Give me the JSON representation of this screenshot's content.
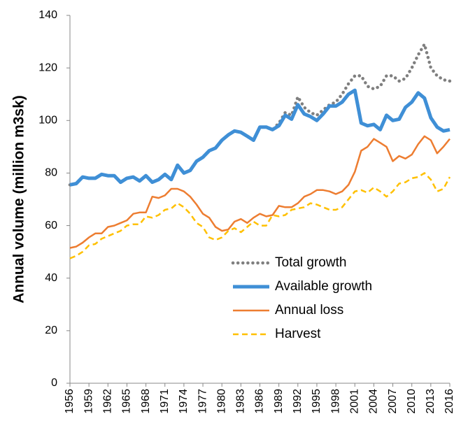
{
  "chart_data": {
    "type": "line",
    "y_label": "Annual volume (million m3sk)",
    "x": [
      1956,
      1957,
      1958,
      1959,
      1960,
      1961,
      1962,
      1963,
      1964,
      1965,
      1966,
      1967,
      1968,
      1969,
      1970,
      1971,
      1972,
      1973,
      1974,
      1975,
      1976,
      1977,
      1978,
      1979,
      1980,
      1981,
      1982,
      1983,
      1984,
      1985,
      1986,
      1987,
      1988,
      1989,
      1990,
      1991,
      1992,
      1993,
      1994,
      1995,
      1996,
      1997,
      1998,
      1999,
      2000,
      2001,
      2002,
      2003,
      2004,
      2005,
      2006,
      2007,
      2008,
      2009,
      2010,
      2011,
      2012,
      2013,
      2014,
      2015,
      2016
    ],
    "xlim": [
      1956,
      2016
    ],
    "xticks": [
      1956,
      1959,
      1962,
      1965,
      1968,
      1971,
      1974,
      1977,
      1980,
      1983,
      1986,
      1989,
      1992,
      1995,
      1998,
      2001,
      2004,
      2007,
      2010,
      2013,
      2016
    ],
    "ylim": [
      0,
      140
    ],
    "yticks": [
      0,
      20,
      40,
      60,
      80,
      100,
      120,
      140
    ],
    "grid": false,
    "legend": "lower right",
    "series": [
      {
        "name": "Total  growth",
        "color": "#7f7f7f",
        "style": "dotted",
        "values": [
          75.5,
          76,
          78.5,
          78,
          78,
          79.5,
          79,
          79,
          76.5,
          78,
          78.5,
          77,
          79,
          76.5,
          77.5,
          79.5,
          77.5,
          83,
          80,
          81,
          84.5,
          86,
          88.5,
          89.5,
          92.5,
          94.5,
          96,
          95.5,
          94,
          92.5,
          97.5,
          97.5,
          96.5,
          99,
          103,
          102,
          109,
          105,
          103,
          102,
          104,
          106,
          107,
          110,
          114,
          117,
          117,
          113,
          112,
          113,
          117,
          117,
          115,
          116,
          120,
          125,
          129,
          120,
          117,
          115.5,
          115
        ]
      },
      {
        "name": "Available  growth",
        "color": "#3f8fd6",
        "style": "bold",
        "values": [
          75.5,
          76,
          78.5,
          78,
          78,
          79.5,
          79,
          79,
          76.5,
          78,
          78.5,
          77,
          79,
          76.5,
          77.5,
          79.5,
          77.5,
          83,
          80,
          81,
          84.5,
          86,
          88.5,
          89.5,
          92.5,
          94.5,
          96,
          95.5,
          94,
          92.5,
          97.5,
          97.5,
          96.5,
          98,
          102,
          100.5,
          106,
          102.5,
          101.5,
          100,
          102.5,
          105.5,
          105.5,
          107,
          110,
          111.5,
          99,
          98,
          98.5,
          96.5,
          102,
          100,
          100.5,
          105,
          107,
          110.5,
          108.5,
          101,
          97.5,
          96,
          96.5
        ]
      },
      {
        "name": "Annual loss",
        "color": "#ed7d31",
        "style": "solid",
        "values": [
          51.5,
          52,
          53.5,
          55.5,
          57,
          57,
          59.5,
          60,
          61,
          62,
          64.5,
          65,
          65,
          71,
          70.5,
          71.5,
          74,
          74,
          73,
          71,
          68,
          64.5,
          63,
          59.5,
          58,
          58.5,
          61.5,
          62.5,
          61,
          63,
          64.5,
          63.5,
          64,
          67.5,
          67,
          67,
          68.5,
          71,
          72,
          73.5,
          73.5,
          73,
          72,
          73,
          75.5,
          80.5,
          88.5,
          90,
          93,
          91.5,
          90,
          84.5,
          86.5,
          85.5,
          87,
          91,
          94,
          92.5,
          87.5,
          90,
          93
        ]
      },
      {
        "name": "Harvest",
        "color": "#ffc000",
        "style": "dashed",
        "values": [
          47.5,
          48.5,
          50,
          52.5,
          53,
          55,
          56,
          57,
          58,
          60,
          60.5,
          60.5,
          63.5,
          63,
          64,
          66,
          66.5,
          68.5,
          67,
          64.5,
          61,
          59.5,
          55.5,
          54.5,
          55.5,
          58,
          59,
          57.5,
          59.5,
          61.5,
          60,
          60,
          64,
          63.5,
          64,
          66,
          66.5,
          67,
          68.5,
          68,
          67,
          66,
          66,
          67,
          70,
          73,
          73.5,
          72.5,
          74.5,
          73,
          71,
          73,
          76,
          76.5,
          78,
          78.5,
          80,
          77.5,
          73,
          74,
          78.5
        ]
      }
    ]
  }
}
